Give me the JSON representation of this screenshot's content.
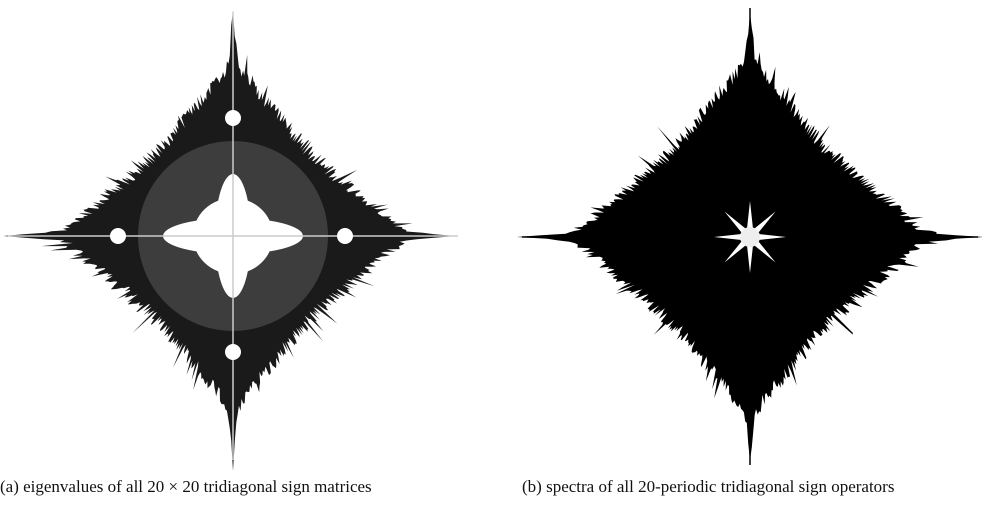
{
  "figure": {
    "panels": [
      {
        "caption": "(a) eigenvalues of all 20 × 20 tridiagonal sign matrices"
      },
      {
        "caption": "(b) spectra of all 20-periodic tridiagonal sign operators"
      }
    ]
  }
}
